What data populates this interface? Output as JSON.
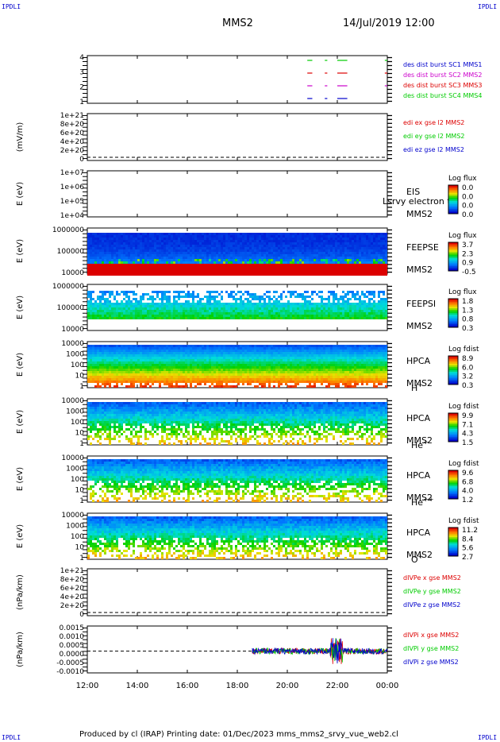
{
  "corner_label": "IPDLI",
  "header": {
    "spacecraft": "MMS2",
    "datetime": "14/Jul/2019 12:00"
  },
  "footer": {
    "text": "Produced by cl (IRAP)   Printing date: 01/Dec/2023   mms_mms2_srvy_vue_web2.cl"
  },
  "colors": {
    "blue": "#0000cc",
    "magenta": "#cc00cc",
    "red": "#dd0000",
    "green": "#00cc00"
  },
  "chart_data": [
    {
      "type": "line",
      "name": "burst-status",
      "yticks": [
        "1",
        "2",
        "3",
        "4"
      ],
      "ylim": [
        0.5,
        4.5
      ],
      "legend": [
        {
          "text": "des dist burst SC1 MMS1",
          "color": "#0000cc"
        },
        {
          "text": "des dist burst SC2 MMS2",
          "color": "#cc00cc"
        },
        {
          "text": "des dist burst SC3 MMS3",
          "color": "#dd0000"
        },
        {
          "text": "des dist burst SC4 MMS4",
          "color": "#00cc00"
        }
      ],
      "series": [
        {
          "level": 1,
          "color": "#0000cc",
          "segments": [
            [
              20.8,
              21.0
            ],
            [
              21.5,
              21.6
            ],
            [
              22.0,
              22.4
            ]
          ]
        },
        {
          "level": 2,
          "color": "#cc00cc",
          "segments": [
            [
              20.8,
              21.0
            ],
            [
              21.5,
              21.6
            ],
            [
              22.0,
              22.4
            ],
            [
              23.9,
              24.0
            ]
          ]
        },
        {
          "level": 3,
          "color": "#dd0000",
          "segments": [
            [
              20.8,
              21.0
            ],
            [
              21.5,
              21.6
            ],
            [
              22.0,
              22.4
            ],
            [
              23.9,
              24.0
            ]
          ]
        },
        {
          "level": 4,
          "color": "#00cc00",
          "segments": [
            [
              20.8,
              21.0
            ],
            [
              21.5,
              21.6
            ],
            [
              22.0,
              22.4
            ],
            [
              23.9,
              24.0
            ]
          ]
        }
      ]
    },
    {
      "type": "line",
      "name": "edi-efield",
      "ylabel": "(mV/m)",
      "yticks": [
        "0",
        "2e+20",
        "4e+20",
        "6e+20",
        "8e+20",
        "1e+21"
      ],
      "legend": [
        {
          "text": "edi ex gse l2 MMS2",
          "color": "#dd0000"
        },
        {
          "text": "edi ey gse l2 MMS2",
          "color": "#00cc00"
        },
        {
          "text": "edi ez gse l2 MMS2",
          "color": "#0000cc"
        }
      ]
    },
    {
      "type": "heatmap",
      "name": "eis",
      "ylabel": "E (eV)",
      "yticks": [
        "1e+04",
        "1e+05",
        "1e+06",
        "1e+07"
      ],
      "labels": [
        "EIS",
        "MMS2"
      ],
      "overlay_text": "Lsrvy electron to",
      "colorbar": {
        "title": "Log flux",
        "ticks": [
          "0.0",
          "0.0",
          "0.0",
          "0.0"
        ]
      }
    },
    {
      "type": "heatmap",
      "name": "feeps-electron",
      "ylabel": "E (eV)",
      "yticks": [
        "10000",
        "100000",
        "1000000"
      ],
      "labels": [
        "FEEPSE",
        "MMS2"
      ],
      "colorbar": {
        "title": "Log flux",
        "ticks": [
          "3.7",
          "2.3",
          "0.9",
          "-0.5"
        ]
      }
    },
    {
      "type": "heatmap",
      "name": "feeps-ion",
      "ylabel": "E (eV)",
      "yticks": [
        "10000",
        "100000",
        "1000000"
      ],
      "labels": [
        "FEEPSI",
        "MMS2"
      ],
      "colorbar": {
        "title": "Log flux",
        "ticks": [
          "1.8",
          "1.3",
          "0.8",
          "0.3"
        ]
      }
    },
    {
      "type": "heatmap",
      "name": "hpca-h",
      "ylabel": "E (eV)",
      "yticks": [
        "1",
        "10",
        "100",
        "1000",
        "10000"
      ],
      "labels": [
        "HPCA",
        "MMS2"
      ],
      "species": "H",
      "species_sup": "+",
      "colorbar": {
        "title": "Log fdist",
        "ticks": [
          "8.9",
          "6.0",
          "3.2",
          "0.3"
        ]
      }
    },
    {
      "type": "heatmap",
      "name": "hpca-he",
      "ylabel": "E (eV)",
      "yticks": [
        "1",
        "10",
        "100",
        "1000",
        "10000"
      ],
      "labels": [
        "HPCA",
        "MMS2"
      ],
      "species": "He",
      "species_sup": "+",
      "colorbar": {
        "title": "Log fdist",
        "ticks": [
          "9.9",
          "7.1",
          "4.3",
          "1.5"
        ]
      }
    },
    {
      "type": "heatmap",
      "name": "hpca-he2",
      "ylabel": "E (eV)",
      "yticks": [
        "1",
        "10",
        "100",
        "1000",
        "10000"
      ],
      "labels": [
        "HPCA",
        "MMS2"
      ],
      "species": "He",
      "species_sup": "++",
      "colorbar": {
        "title": "Log fdist",
        "ticks": [
          "9.6",
          "6.8",
          "4.0",
          "1.2"
        ]
      }
    },
    {
      "type": "heatmap",
      "name": "hpca-o",
      "ylabel": "E (eV)",
      "yticks": [
        "1",
        "10",
        "100",
        "1000",
        "10000"
      ],
      "labels": [
        "HPCA",
        "MMS2"
      ],
      "species": "O",
      "species_sup": "+",
      "colorbar": {
        "title": "Log fdist",
        "ticks": [
          "11.2",
          "8.4",
          "5.6",
          "2.7"
        ]
      }
    },
    {
      "type": "line",
      "name": "divpe",
      "ylabel": "(nPa/km)",
      "yticks": [
        "0",
        "2e+20",
        "4e+20",
        "6e+20",
        "8e+20",
        "1e+21"
      ],
      "legend": [
        {
          "text": "dIVPe x gse MMS2",
          "color": "#dd0000"
        },
        {
          "text": "dIVPe y gse MMS2",
          "color": "#00cc00"
        },
        {
          "text": "dIVPe z gse MMS2",
          "color": "#0000cc"
        }
      ]
    },
    {
      "type": "line",
      "name": "divpi",
      "ylabel": "(nPa/km)",
      "yticks": [
        "-0.0010",
        "-0.0005",
        "0.0000",
        "0.0005",
        "0.0010",
        "0.0015"
      ],
      "ylim": [
        -0.0013,
        0.0015
      ],
      "data_start": 18.6,
      "data_end": 24.0,
      "legend": [
        {
          "text": "dIVPi x gse MMS2",
          "color": "#dd0000"
        },
        {
          "text": "dIVPi y gse MMS2",
          "color": "#00cc00"
        },
        {
          "text": "dIVPi z gse MMS2",
          "color": "#0000cc"
        }
      ]
    }
  ],
  "time_axis": {
    "ticks": [
      "12:00",
      "14:00",
      "16:00",
      "18:00",
      "20:00",
      "22:00",
      "00:00"
    ],
    "range_hours": [
      12,
      24
    ]
  }
}
